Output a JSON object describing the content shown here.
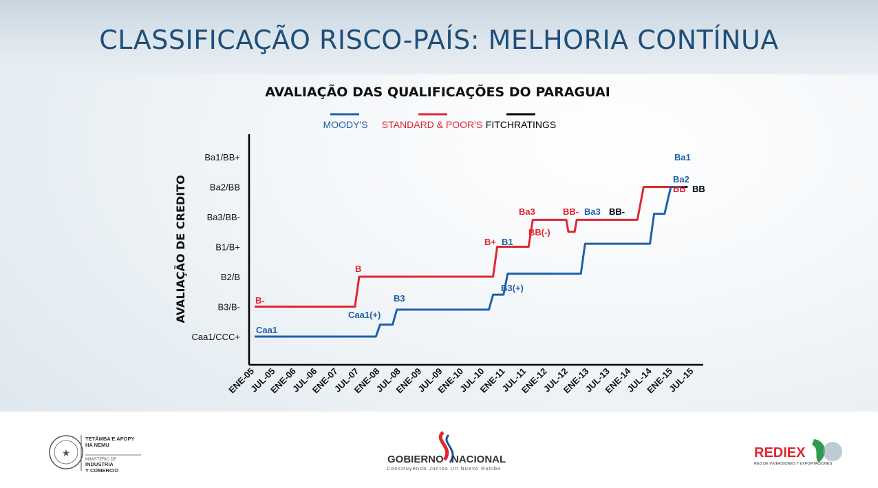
{
  "page": {
    "title": "CLASSIFICAÇÃO RISCO-PAÍS: MELHORIA CONTÍNUA"
  },
  "chart_data": {
    "type": "line",
    "title": "AVALIAÇÃO DAS QUALIFICAÇÕES DO PARAGUAI",
    "ylabel": "AVALIAÇÃO DE CREDITO",
    "xlabel": "",
    "categories": [
      "ENE-05",
      "JUL-05",
      "ENE-06",
      "JUL-06",
      "ENE-07",
      "JUL-07",
      "ENE-08",
      "JUL-08",
      "ENE-09",
      "JUL-09",
      "ENE-10",
      "JUL-10",
      "ENE-11",
      "JUL-11",
      "ENE-12",
      "JUL-12",
      "ENE-13",
      "JUL-13",
      "ENE-14",
      "JUL-14",
      "ENE-15",
      "JUL-15"
    ],
    "y_levels": [
      "Caa1/CCC+",
      "B3/B-",
      "B2/B",
      "B1/B+",
      "Ba3/BB-",
      "Ba2/BB",
      "Ba1/BB+"
    ],
    "legend": [
      "MOODY'S",
      "STANDARD & POOR'S",
      "FITCHRATINGS"
    ],
    "colors": {
      "moodys": "#1f5fa8",
      "sp": "#e0262e",
      "fitch": "#000000"
    },
    "series": [
      {
        "name": "MOODY'S",
        "points": [
          [
            0,
            0
          ],
          [
            5.8,
            0
          ],
          [
            6.0,
            0.4
          ],
          [
            6.6,
            0.4
          ],
          [
            6.8,
            0.9
          ],
          [
            11.2,
            0.9
          ],
          [
            11.4,
            1.4
          ],
          [
            11.9,
            1.4
          ],
          [
            12.1,
            2.1
          ],
          [
            15.6,
            2.1
          ],
          [
            15.8,
            3.1
          ],
          [
            18.9,
            3.1
          ],
          [
            19.1,
            4.1
          ],
          [
            19.6,
            4.1
          ],
          [
            19.9,
            5.0
          ],
          [
            20.5,
            5.0
          ]
        ]
      },
      {
        "name": "STANDARD & POOR'S",
        "points": [
          [
            0,
            1
          ],
          [
            4.8,
            1
          ],
          [
            5.0,
            2
          ],
          [
            11.4,
            2
          ],
          [
            11.6,
            3
          ],
          [
            13.1,
            3
          ],
          [
            13.3,
            3.9
          ],
          [
            14.9,
            3.9
          ],
          [
            15.0,
            3.5
          ],
          [
            15.3,
            3.5
          ],
          [
            15.4,
            3.9
          ],
          [
            18.3,
            3.9
          ],
          [
            18.6,
            5.0
          ],
          [
            20.5,
            5.0
          ]
        ]
      },
      {
        "name": "FITCHRATINGS",
        "points": [
          [
            20.4,
            5.0
          ],
          [
            20.7,
            5.0
          ]
        ]
      }
    ],
    "annotations": [
      {
        "text": "Caa1",
        "series": "moodys"
      },
      {
        "text": "Caa1(+)",
        "series": "moodys"
      },
      {
        "text": "B3",
        "series": "moodys"
      },
      {
        "text": "B3(+)",
        "series": "moodys"
      },
      {
        "text": "B1",
        "series": "moodys"
      },
      {
        "text": "Ba3",
        "series": "moodys"
      },
      {
        "text": "Ba2",
        "series": "moodys"
      },
      {
        "text": "Ba1",
        "series": "moodys"
      },
      {
        "text": "B-",
        "series": "sp"
      },
      {
        "text": "B",
        "series": "sp"
      },
      {
        "text": "B+",
        "series": "sp"
      },
      {
        "text": "Ba3",
        "series": "sp"
      },
      {
        "text": "BB(-)",
        "series": "sp"
      },
      {
        "text": "BB-",
        "series": "sp"
      },
      {
        "text": "BB",
        "series": "sp"
      },
      {
        "text": "BB-",
        "series": "fitch"
      },
      {
        "text": "BB",
        "series": "fitch"
      }
    ]
  },
  "footer": {
    "left_logo_text_1": "TETÃMBA'E APOPY",
    "left_logo_text_2": "HA NEMU",
    "left_logo_text_3": "MINISTERIO DE",
    "left_logo_text_4": "INDUSTRIA",
    "left_logo_text_5": "Y COMERCIO",
    "center_logo_word_1": "GOBIERNO",
    "center_logo_word_2": "NACIONAL",
    "center_logo_tagline": "Construyendo Juntos Un Nuevo Rumbo",
    "right_logo_word": "REDIEX",
    "right_logo_tagline": "RED DE INVERSIONES Y EXPORTACIONES"
  }
}
